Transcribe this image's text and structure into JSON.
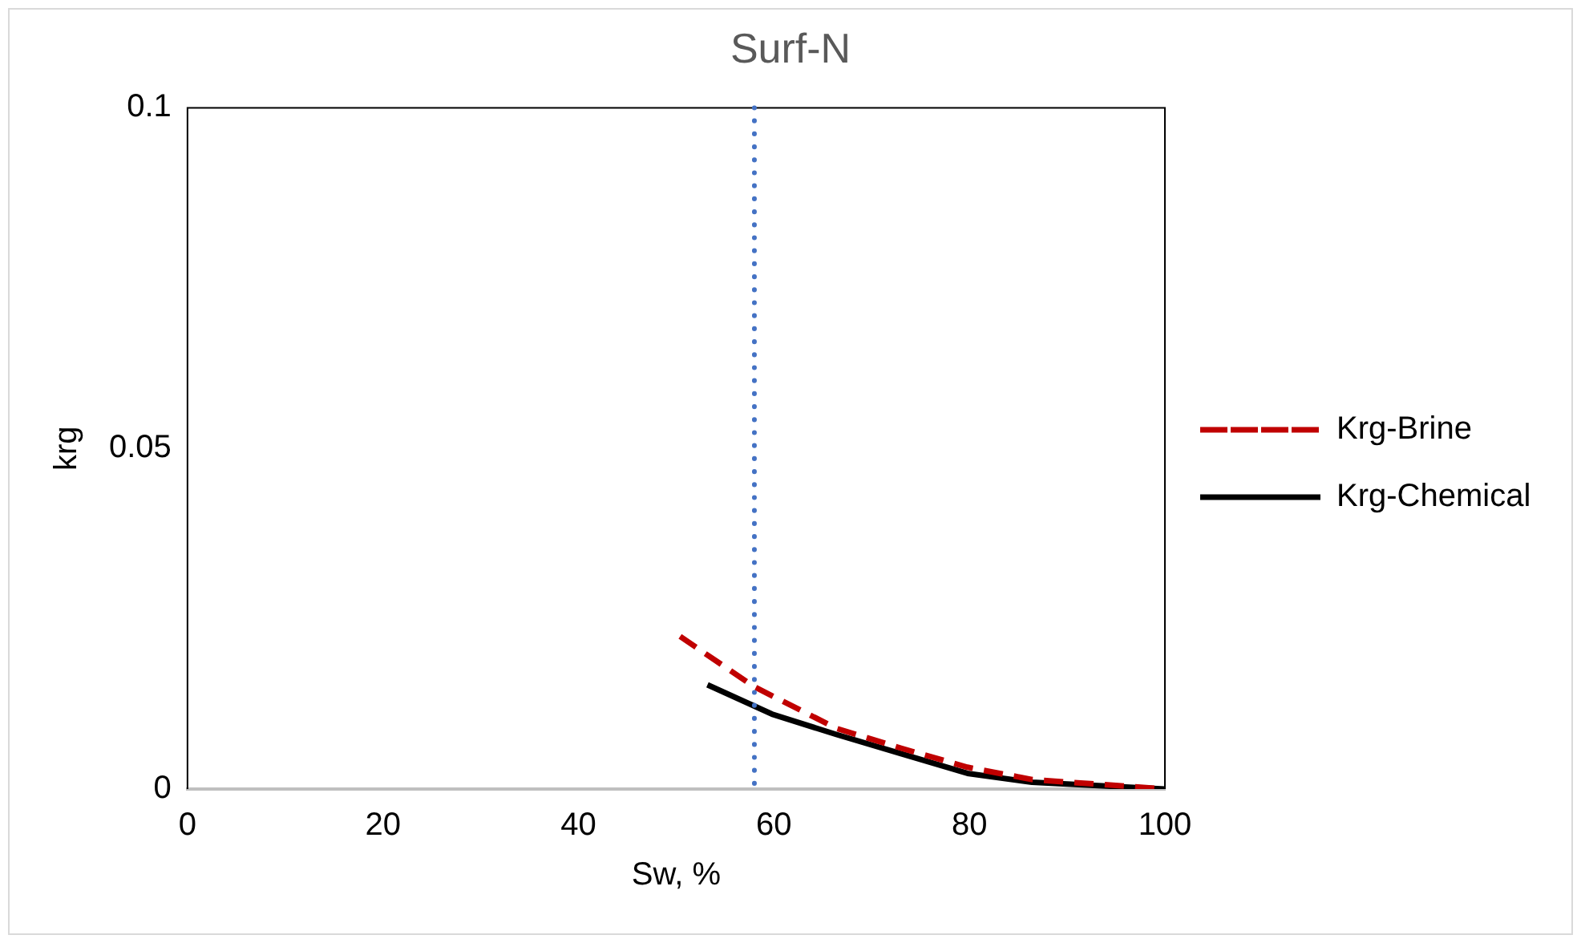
{
  "chart_data": {
    "type": "line",
    "title": "Surf-N",
    "xlabel": "Sw, %",
    "ylabel": "krg",
    "xlim": [
      0,
      100
    ],
    "xticks": [
      0,
      20,
      40,
      60,
      80,
      100
    ],
    "ylim": [
      0,
      0.1
    ],
    "yticks": [
      0,
      0.05,
      0.1
    ],
    "grid": false,
    "legend": "right",
    "marker": "none",
    "series": [
      {
        "name": "Krg-Brine",
        "color": "#c00000",
        "line_style": "dashed",
        "x": [
          50.4,
          58,
          66.4,
          73,
          79.8,
          86.4,
          100
        ],
        "values": [
          0.0224,
          0.015,
          0.0089,
          0.006,
          0.0032,
          0.0014,
          0
        ]
      },
      {
        "name": "Krg-Chemical",
        "color": "#000000",
        "line_style": "solid",
        "x": [
          53.2,
          59.8,
          66.4,
          73,
          79.8,
          86.4,
          100
        ],
        "values": [
          0.0153,
          0.011,
          0.008,
          0.0052,
          0.0023,
          0.001,
          0
        ]
      }
    ],
    "ref_lines": [
      {
        "axis": "x",
        "value": 58,
        "color": "#4472c4",
        "line_style": "dotted"
      }
    ]
  }
}
